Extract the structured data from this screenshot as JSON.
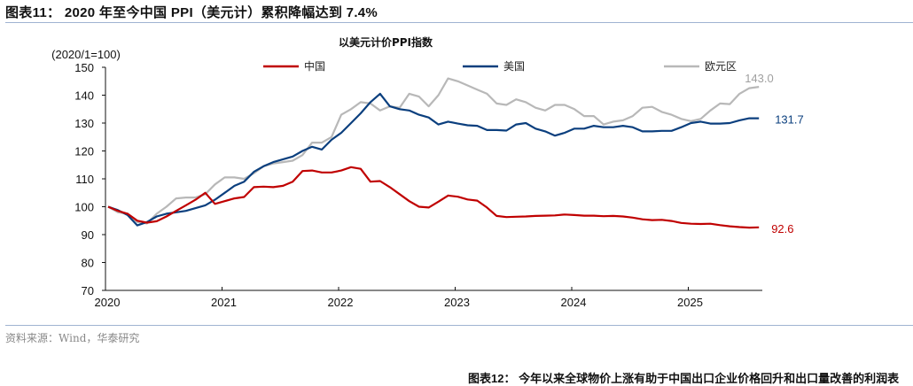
{
  "figure": {
    "title": "图表11： 2020 年至今中国 PPI（美元计）累积降幅达到 7.4%",
    "source": "资料来源：Wind，华泰研究",
    "next_caption": "图表12： 今年以来全球物价上涨有助于中国出口企业价格回升和出口量改善的利润表"
  },
  "chart_data": {
    "type": "line",
    "title": "以美元计价PPI指数",
    "ylabel": "(2020/1=100)",
    "xlabel": "",
    "ylim": [
      70,
      150
    ],
    "yticks": [
      70,
      80,
      90,
      100,
      110,
      120,
      130,
      140,
      150
    ],
    "xticks": [
      "2020",
      "2021",
      "2022",
      "2023",
      "2024",
      "2025"
    ],
    "x_start": "2020-01",
    "x_frequency": "monthly",
    "grid": false,
    "legend_position": "top",
    "series": [
      {
        "name": "中国",
        "color": "#c00000",
        "end_label": "92.6",
        "values": [
          100,
          98.5,
          97.5,
          95.0,
          94.3,
          94.8,
          96.5,
          98.5,
          100.5,
          102.5,
          105.0,
          101.0,
          102.0,
          103.0,
          103.5,
          107.0,
          107.2,
          107.0,
          107.5,
          109.0,
          112.8,
          113.0,
          112.3,
          112.3,
          113.0,
          114.2,
          113.6,
          109.0,
          109.2,
          107.0,
          104.5,
          102.0,
          100.0,
          99.7,
          101.8,
          104.0,
          103.6,
          102.6,
          102.2,
          99.7,
          96.7,
          96.3,
          96.4,
          96.5,
          96.7,
          96.8,
          96.9,
          97.2,
          97.0,
          96.8,
          96.8,
          96.6,
          96.7,
          96.5,
          96.1,
          95.5,
          95.2,
          95.3,
          94.9,
          94.2,
          93.9,
          93.8,
          93.9,
          93.4,
          93.0,
          92.7,
          92.5,
          92.6
        ]
      },
      {
        "name": "美国",
        "color": "#0b3f7e",
        "end_label": "131.7",
        "values": [
          100,
          98.8,
          97.0,
          93.3,
          94.5,
          96.5,
          97.5,
          98.0,
          98.5,
          99.5,
          100.5,
          102.5,
          105.0,
          107.5,
          109.0,
          112.5,
          114.5,
          116.0,
          117.0,
          118.0,
          120.0,
          121.5,
          120.5,
          124.0,
          126.5,
          130.0,
          133.5,
          137.5,
          140.5,
          136.0,
          135.0,
          134.5,
          133.0,
          132.0,
          129.5,
          130.5,
          129.8,
          129.2,
          129.0,
          127.5,
          127.5,
          127.3,
          129.5,
          130.0,
          128.0,
          127.0,
          125.5,
          126.5,
          128.0,
          128.0,
          129.0,
          128.5,
          128.5,
          129.0,
          128.5,
          127.0,
          127.0,
          127.2,
          127.2,
          128.5,
          130.0,
          130.5,
          129.8,
          129.8,
          130.0,
          131.0,
          131.7,
          131.7
        ]
      },
      {
        "name": "欧元区",
        "color": "#b8b8b8",
        "end_label": "143.0",
        "values": [
          100,
          98.0,
          97.5,
          94.5,
          94.0,
          97.5,
          100.0,
          103.0,
          103.3,
          103.3,
          104.5,
          108.0,
          110.5,
          110.5,
          110.0,
          112.0,
          114.5,
          115.5,
          116.0,
          116.5,
          118.5,
          123.0,
          123.0,
          125.0,
          133.0,
          135.0,
          137.5,
          137.0,
          134.5,
          136.0,
          135.5,
          140.5,
          139.5,
          136.0,
          140.0,
          146.0,
          145.0,
          143.5,
          142.0,
          140.5,
          137.0,
          136.5,
          138.5,
          137.5,
          135.5,
          134.5,
          136.5,
          136.5,
          135.0,
          132.5,
          132.5,
          129.5,
          130.5,
          131.0,
          132.5,
          135.5,
          135.8,
          134.0,
          133.0,
          131.5,
          130.7,
          131.5,
          134.5,
          137.0,
          136.8,
          140.5,
          142.5,
          143.0
        ]
      }
    ]
  }
}
